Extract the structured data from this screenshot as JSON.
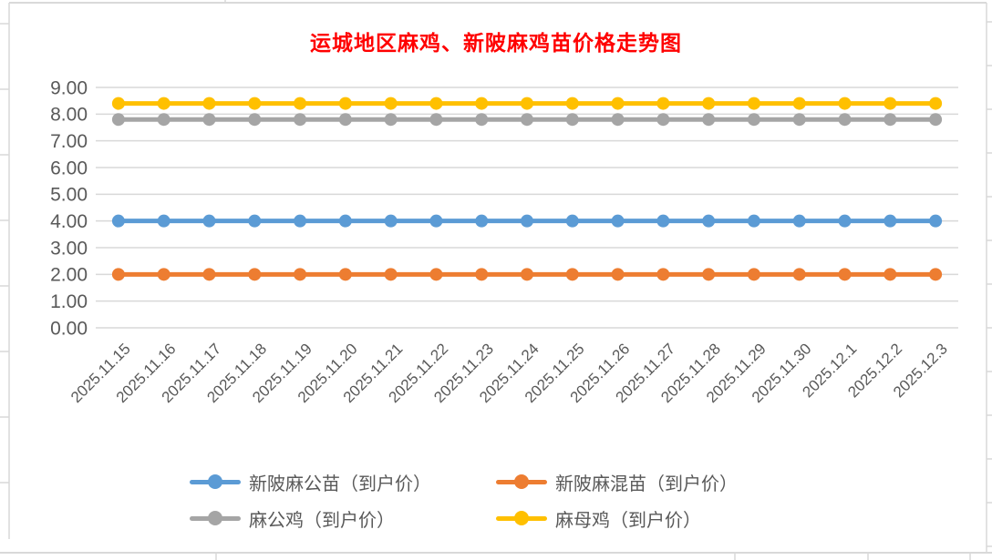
{
  "title": "运城地区麻鸡、新陂麻鸡苗价格走势图",
  "title_color": "#FF0000",
  "chart_data": {
    "type": "line",
    "title": "运城地区麻鸡、新陂麻鸡苗价格走势图",
    "xlabel": "",
    "ylabel": "",
    "categories": [
      "2025.11.15",
      "2025.11.16",
      "2025.11.17",
      "2025.11.18",
      "2025.11.19",
      "2025.11.20",
      "2025.11.21",
      "2025.11.22",
      "2025.11.23",
      "2025.11.24",
      "2025.11.25",
      "2025.11.26",
      "2025.11.27",
      "2025.11.28",
      "2025.11.29",
      "2025.11.30",
      "2025.12.1",
      "2025.12.2",
      "2025.12.3"
    ],
    "series": [
      {
        "name": "新陂麻公苗（到户价）",
        "color": "#5B9BD5",
        "values": [
          4.0,
          4.0,
          4.0,
          4.0,
          4.0,
          4.0,
          4.0,
          4.0,
          4.0,
          4.0,
          4.0,
          4.0,
          4.0,
          4.0,
          4.0,
          4.0,
          4.0,
          4.0,
          4.0
        ]
      },
      {
        "name": "新陂麻混苗（到户价）",
        "color": "#ED7D31",
        "values": [
          2.0,
          2.0,
          2.0,
          2.0,
          2.0,
          2.0,
          2.0,
          2.0,
          2.0,
          2.0,
          2.0,
          2.0,
          2.0,
          2.0,
          2.0,
          2.0,
          2.0,
          2.0,
          2.0
        ]
      },
      {
        "name": "麻公鸡（到户价）",
        "color": "#A5A5A5",
        "values": [
          7.8,
          7.8,
          7.8,
          7.8,
          7.8,
          7.8,
          7.8,
          7.8,
          7.8,
          7.8,
          7.8,
          7.8,
          7.8,
          7.8,
          7.8,
          7.8,
          7.8,
          7.8,
          7.8
        ]
      },
      {
        "name": "麻母鸡（到户价）",
        "color": "#FFC000",
        "values": [
          8.4,
          8.4,
          8.4,
          8.4,
          8.4,
          8.4,
          8.4,
          8.4,
          8.4,
          8.4,
          8.4,
          8.4,
          8.4,
          8.4,
          8.4,
          8.4,
          8.4,
          8.4,
          8.4
        ]
      }
    ],
    "ylim": [
      0,
      9
    ],
    "ytick_step": 1,
    "ytick_labels": [
      "0.00",
      "1.00",
      "2.00",
      "3.00",
      "4.00",
      "5.00",
      "6.00",
      "7.00",
      "8.00",
      "9.00"
    ],
    "grid": "horizontal",
    "legend_position": "bottom",
    "gridline_color": "#D9D9D9",
    "axis_label_color": "#595959",
    "frame_color": "#D9D9D9",
    "background": "#FFFFFF"
  }
}
